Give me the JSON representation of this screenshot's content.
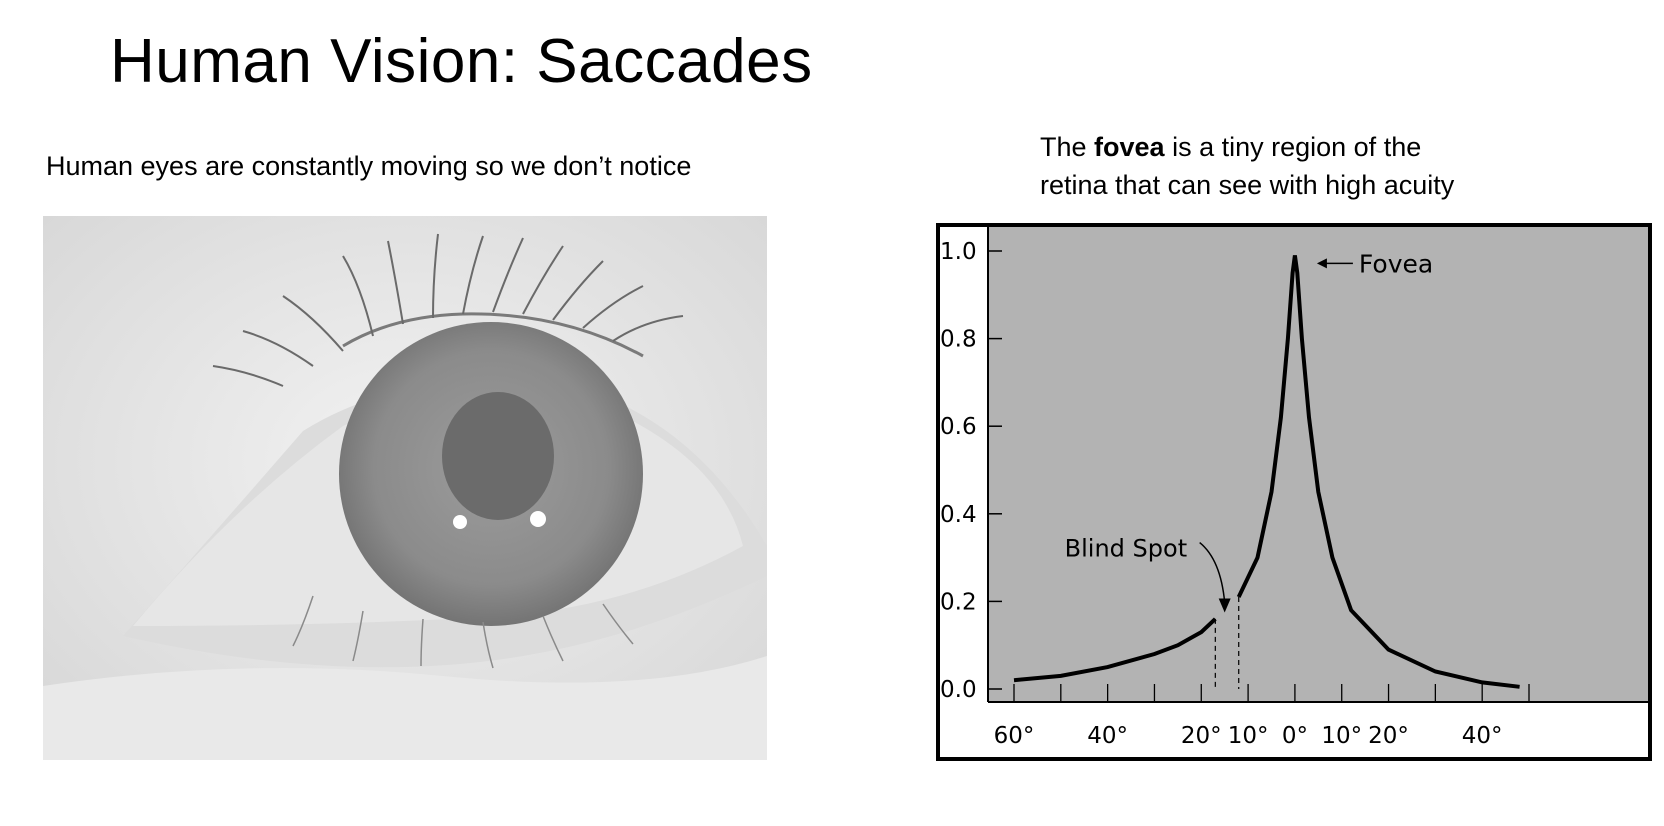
{
  "slide": {
    "title": "Human Vision: Saccades",
    "left_caption": "Human eyes are constantly moving so we don’t notice",
    "right_caption": {
      "prefix": "The ",
      "bold": "fovea",
      "line1_rest": " is a tiny region of the",
      "line2": "retina that can see with high acuity"
    }
  },
  "photo": {
    "icon": "eye-photo",
    "colors": {
      "sclera": "#e2e2e2",
      "iris": "#8a8a8a",
      "pupil": "#6c6c6c"
    }
  },
  "chart_data": {
    "type": "line",
    "title": "",
    "xlabel": "",
    "ylabel": "",
    "ylim": [
      0.0,
      1.0
    ],
    "xlim": [
      -60,
      50
    ],
    "y_ticks": [
      "1.0",
      "0.8",
      "0.6",
      "0.4",
      "0.2",
      "0.0"
    ],
    "x_tick_labels": [
      {
        "x": -60,
        "label": "60°"
      },
      {
        "x": -40,
        "label": "40°"
      },
      {
        "x": -20,
        "label": "20°"
      },
      {
        "x": -10,
        "label": "10°"
      },
      {
        "x": 0,
        "label": "0°"
      },
      {
        "x": 10,
        "label": "10°"
      },
      {
        "x": 20,
        "label": "20°"
      },
      {
        "x": 40,
        "label": "40°"
      }
    ],
    "x_ticks": [
      -60,
      -50,
      -40,
      -30,
      -20,
      -10,
      0,
      10,
      20,
      30,
      40,
      50
    ],
    "blind_spot_range": [
      -17,
      -12
    ],
    "series": [
      {
        "values_left": [
          [
            -60,
            0.02
          ],
          [
            -50,
            0.03
          ],
          [
            -40,
            0.05
          ],
          [
            -30,
            0.08
          ],
          [
            -25,
            0.1
          ],
          [
            -20,
            0.13
          ],
          [
            -17,
            0.16
          ]
        ],
        "values_right": [
          [
            -12,
            0.21
          ],
          [
            -8,
            0.3
          ],
          [
            -5,
            0.45
          ],
          [
            -3,
            0.62
          ],
          [
            -1.5,
            0.8
          ],
          [
            -0.5,
            0.95
          ],
          [
            0,
            0.99
          ],
          [
            0.5,
            0.95
          ],
          [
            1.5,
            0.8
          ],
          [
            3,
            0.62
          ],
          [
            5,
            0.45
          ],
          [
            8,
            0.3
          ],
          [
            12,
            0.18
          ],
          [
            20,
            0.09
          ],
          [
            30,
            0.04
          ],
          [
            40,
            0.015
          ],
          [
            48,
            0.005
          ]
        ]
      }
    ],
    "annotations": [
      {
        "text": "Fovea",
        "x": 0,
        "y": 0.99
      },
      {
        "text": "Blind Spot",
        "x": -15,
        "y": 0.17
      }
    ],
    "colors": {
      "plot_bg": "#b3b3b3",
      "line": "#000000",
      "frame": "#000000"
    }
  }
}
